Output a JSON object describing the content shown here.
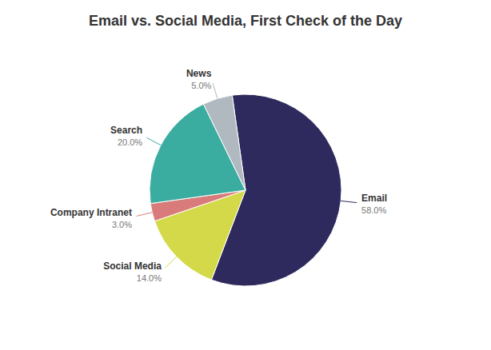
{
  "chart_data": {
    "type": "pie",
    "title": "Email vs. Social Media, First Check of the Day",
    "categories": [
      "Email",
      "Social Media",
      "Company Intranet",
      "Search",
      "News"
    ],
    "values": [
      58.0,
      14.0,
      3.0,
      20.0,
      5.0
    ],
    "value_labels": [
      "58.0%",
      "14.0%",
      "3.0%",
      "20.0%",
      "5.0%"
    ],
    "colors": [
      "#2e2a5e",
      "#d4d94a",
      "#d97b7b",
      "#3aada0",
      "#b0b8c0"
    ],
    "data_labels": true
  }
}
